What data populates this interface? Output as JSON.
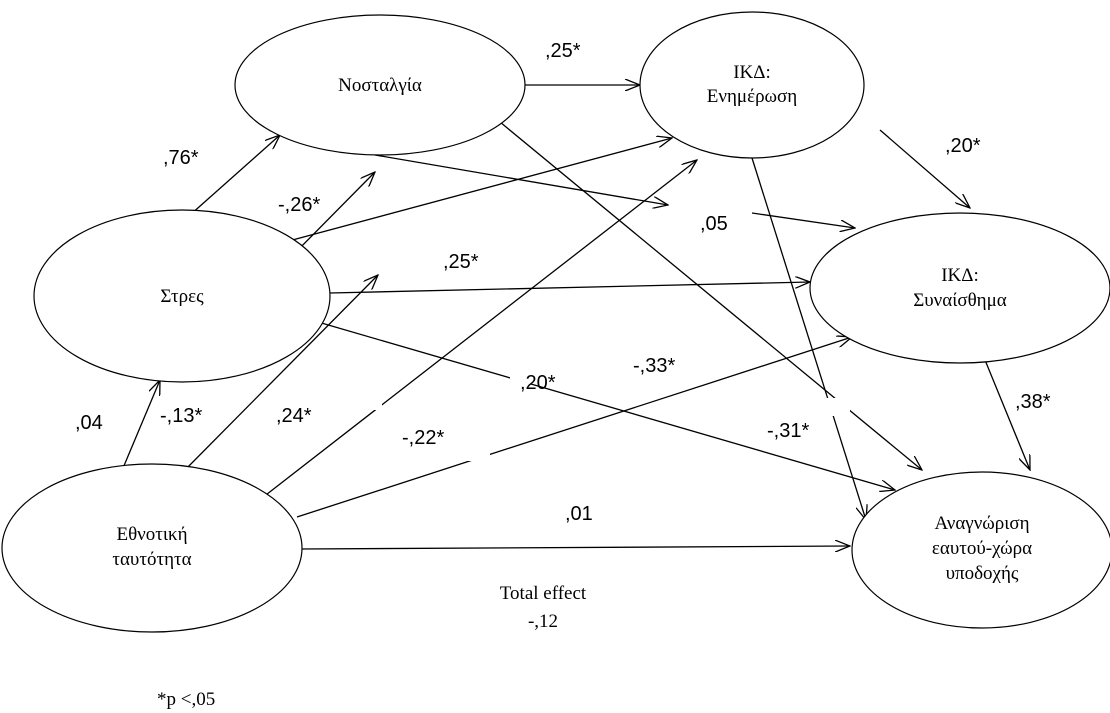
{
  "nodes": {
    "nostalgia": {
      "lines": [
        "Νοσταλγία"
      ]
    },
    "ikd_update": {
      "lines": [
        "ΙΚΔ:",
        "Ενημέρωση"
      ]
    },
    "stress": {
      "lines": [
        "Στρες"
      ]
    },
    "ikd_emotion": {
      "lines": [
        "ΙΚΔ:",
        "Συναίσθημα"
      ]
    },
    "ethnic_identity": {
      "lines": [
        "Εθνοτική",
        "ταυτότητα"
      ]
    },
    "recognition": {
      "lines": [
        "Αναγνώριση",
        "εαυτού-χώρα",
        "υποδοχής"
      ]
    }
  },
  "coefficients": {
    "nostalgia_update": ",25*",
    "stress_nostalgia": ",76*",
    "update_emotion": ",20*",
    "stress_update": "-,26*",
    "nostalgia_emotion": ",05",
    "stress_emotion": ",25*",
    "emotion_recognition": ",38*",
    "update_recognition": "-,33*",
    "stress_recognition": ",20*",
    "identity_stress": ",04",
    "identity_nostalgia": "-,13*",
    "identity_update": ",24*",
    "identity_emotion": "-,22*",
    "nostalgia_recognition": "-,31*",
    "identity_recognition": ",01"
  },
  "total_effect": {
    "label": "Total effect",
    "value": "-,12"
  },
  "significance_note": "*p <,05"
}
